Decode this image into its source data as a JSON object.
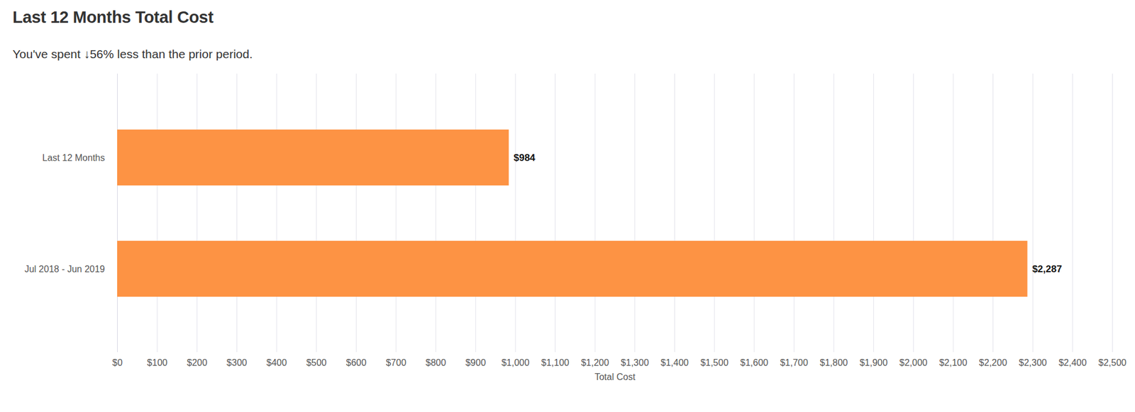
{
  "chart_data": {
    "type": "bar",
    "orientation": "horizontal",
    "title": "Last 12 Months Total Cost",
    "subtitle": "You've spent ↓56% less than the prior period.",
    "xlabel": "Total Cost",
    "categories": [
      "Last 12 Months",
      "Jul 2018 - Jun 2019"
    ],
    "values": [
      984,
      2287
    ],
    "value_labels": [
      "$984",
      "$2,287"
    ],
    "data_labels": true,
    "color": "#fd9344",
    "xlim": [
      0,
      2500
    ],
    "xticks": [
      {
        "value": 0,
        "label": "$0"
      },
      {
        "value": 100,
        "label": "$100"
      },
      {
        "value": 200,
        "label": "$200"
      },
      {
        "value": 300,
        "label": "$300"
      },
      {
        "value": 400,
        "label": "$400"
      },
      {
        "value": 500,
        "label": "$500"
      },
      {
        "value": 600,
        "label": "$600"
      },
      {
        "value": 700,
        "label": "$700"
      },
      {
        "value": 800,
        "label": "$800"
      },
      {
        "value": 900,
        "label": "$900"
      },
      {
        "value": 1000,
        "label": "$1,000"
      },
      {
        "value": 1100,
        "label": "$1,100"
      },
      {
        "value": 1200,
        "label": "$1,200"
      },
      {
        "value": 1300,
        "label": "$1,300"
      },
      {
        "value": 1400,
        "label": "$1,400"
      },
      {
        "value": 1500,
        "label": "$1,500"
      },
      {
        "value": 1600,
        "label": "$1,600"
      },
      {
        "value": 1700,
        "label": "$1,700"
      },
      {
        "value": 1800,
        "label": "$1,800"
      },
      {
        "value": 1900,
        "label": "$1,900"
      },
      {
        "value": 2000,
        "label": "$2,000"
      },
      {
        "value": 2100,
        "label": "$2,100"
      },
      {
        "value": 2200,
        "label": "$2,200"
      },
      {
        "value": 2300,
        "label": "$2,300"
      },
      {
        "value": 2400,
        "label": "$2,400"
      },
      {
        "value": 2500,
        "label": "$2,500"
      }
    ],
    "grid": true
  }
}
